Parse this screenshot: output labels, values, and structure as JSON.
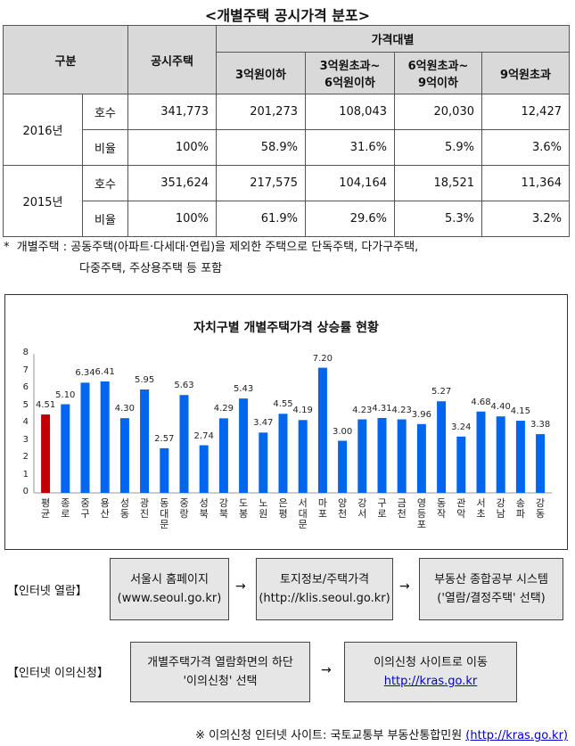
{
  "title": "<개별주택 공시가격 분포>",
  "table": {
    "h_category": "구분",
    "h_total": "공시주택",
    "h_price_band": "가격대별",
    "bands": [
      "3억원이하",
      "3억원초과~\n6억원이하",
      "6억원초과~\n9억이하",
      "9억원초과"
    ],
    "rows": [
      {
        "year": "2016년",
        "label": "호수",
        "values": [
          "341,773",
          "201,273",
          "108,043",
          "20,030",
          "12,427"
        ]
      },
      {
        "year": "2016년",
        "label": "비율",
        "values": [
          "100%",
          "58.9%",
          "31.6%",
          "5.9%",
          "3.6%"
        ]
      },
      {
        "year": "2015년",
        "label": "호수",
        "values": [
          "351,624",
          "217,575",
          "104,164",
          "18,521",
          "11,364"
        ]
      },
      {
        "year": "2015년",
        "label": "비율",
        "values": [
          "100%",
          "61.9%",
          "29.6%",
          "5.3%",
          "3.2%"
        ]
      }
    ]
  },
  "footnote": {
    "mark": "*",
    "line1": "개별주택 : 공동주택(아파트·다세대·연립)을 제외한 주택으로 단독주택, 다가구주택,",
    "line2": "다중주택, 주상용주택 등 포함"
  },
  "chart_data": {
    "type": "bar",
    "title": "자치구별 개별주택가격 상승률 현황",
    "ylim": [
      0,
      8
    ],
    "yticks": [
      "0",
      "1",
      "2",
      "3",
      "4",
      "5",
      "6",
      "7",
      "8"
    ],
    "categories": [
      "평균",
      "종로",
      "중구",
      "용산",
      "성동",
      "광진",
      "동대문",
      "중랑",
      "성북",
      "강북",
      "도봉",
      "노원",
      "은평",
      "서대문",
      "마포",
      "양천",
      "강서",
      "구로",
      "금천",
      "영등포",
      "동작",
      "관악",
      "서초",
      "강남",
      "송파",
      "강동"
    ],
    "values": [
      4.51,
      5.1,
      6.34,
      6.41,
      4.3,
      5.95,
      2.57,
      5.63,
      2.74,
      4.29,
      5.43,
      3.47,
      4.55,
      4.19,
      7.2,
      3.0,
      4.23,
      4.31,
      4.23,
      3.96,
      5.27,
      3.24,
      4.68,
      4.4,
      4.15,
      3.38
    ],
    "value_labels": [
      "4.51",
      "5.10",
      "6.34",
      "6.41",
      "4.30",
      "5.95",
      "2.57",
      "5.63",
      "2.74",
      "4.29",
      "5.43",
      "3.47",
      "4.55",
      "4.19",
      "7.20",
      "3.00",
      "4.23",
      "4.31",
      "4.23",
      "3.96",
      "5.27",
      "3.24",
      "4.68",
      "4.40",
      "4.15",
      "3.38"
    ],
    "colors": {
      "highlight": "#c00000",
      "bar": "#0066ee"
    }
  },
  "flow1": {
    "label": "【인터넷 열람】",
    "step1": [
      "서울시 홈페이지",
      "(www.seoul.go.kr)"
    ],
    "step2": [
      "토지정보/주택가격",
      "(http://klis.seoul.go.kr)"
    ],
    "step3": [
      "부동산 종합공부 시스템",
      "('열람/결정주택' 선택)"
    ],
    "arrow": "→"
  },
  "flow2": {
    "label": "【인터넷 이의신청】",
    "step1": [
      "개별주택가격 열람화면의 하단",
      "'이의신청' 선택"
    ],
    "step2": [
      "이의신청 사이트로 이동",
      "http://kras.go.kr"
    ],
    "arrow": "→"
  },
  "note": {
    "text": "※ 이의신청 인터넷 사이트: 국토교통부 부동산통합민원 ",
    "link": "(http://kras.go.kr)"
  }
}
